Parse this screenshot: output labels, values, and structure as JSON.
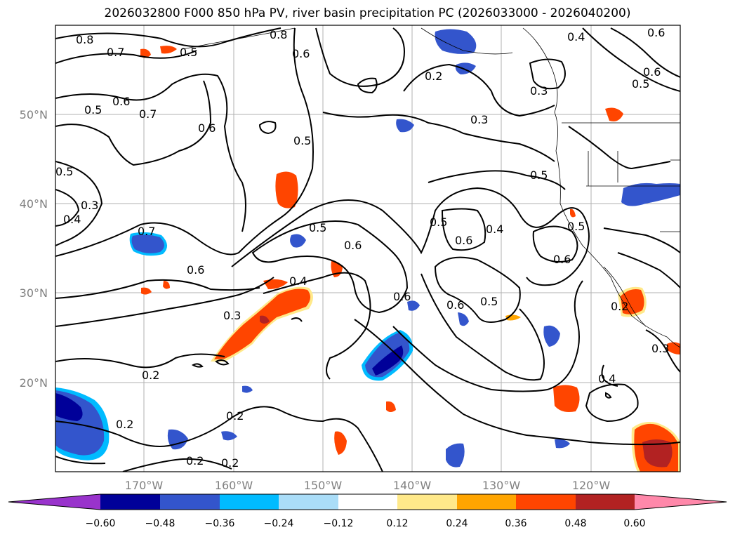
{
  "title": "2026032800 F000 850 hPa PV, river basin precipitation PC (2026033000 - 2026040200)",
  "lat_labels": [
    "50°N",
    "40°N",
    "30°N",
    "20°N"
  ],
  "lon_labels": [
    "170°W",
    "160°W",
    "150°W",
    "140°W",
    "130°W",
    "120°W"
  ],
  "colorbar": {
    "tick_labels": [
      "−0.60",
      "−0.48",
      "−0.36",
      "−0.24",
      "−0.12",
      "0.12",
      "0.24",
      "0.36",
      "0.48",
      "0.60"
    ],
    "colors": [
      "#9933cc",
      "#000099",
      "#3355cc",
      "#00bbff",
      "#aaddf8",
      "#ffffff",
      "#ffe98a",
      "#ffa500",
      "#ff4500",
      "#b22222",
      "#ff88aa"
    ]
  },
  "contour_labels": [
    "0.8",
    "0.7",
    "0.5",
    "0.8",
    "0.6",
    "0.5",
    "0.6",
    "0.7",
    "0.6",
    "0.5",
    "0.5",
    "0.4",
    "0.3",
    "0.7",
    "0.6",
    "0.5",
    "0.6",
    "0.4",
    "0.3",
    "0.2",
    "0.2",
    "0.2",
    "0.2",
    "0.2",
    "0.3",
    "0.5",
    "0.5",
    "0.6",
    "0.4",
    "0.6",
    "0.6",
    "0.6",
    "0.5",
    "0.2",
    "0.3",
    "0.4",
    "0.4",
    "0.6",
    "0.5",
    "0.6",
    "0.5",
    "0.2",
    "0.3"
  ]
}
